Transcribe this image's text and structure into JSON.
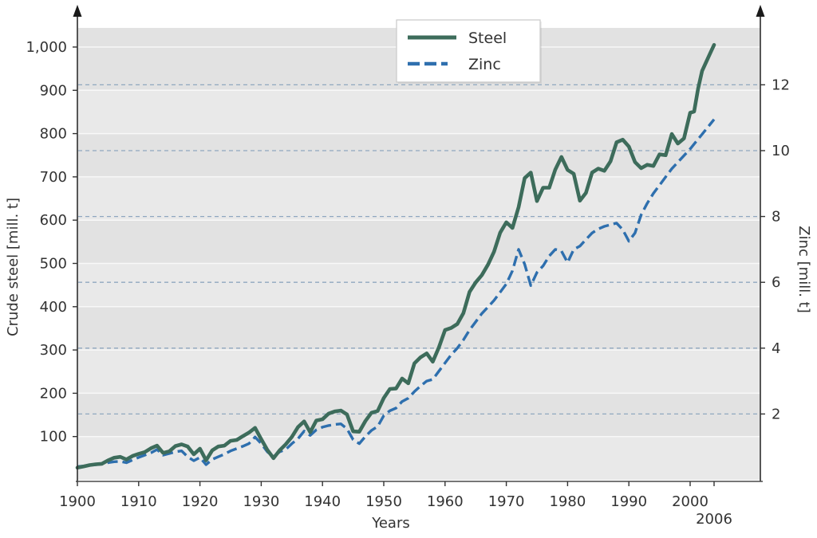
{
  "figure": {
    "type_note": "dual-axis line chart, world steel and zinc production 1900-2006"
  },
  "colors": {
    "background": "#ffffff",
    "plot_band_light": "#e9e9e9",
    "plot_band_dark": "#e2e2e2",
    "white_gridline": "#f8f8f8",
    "dashed_gridline": "#8ba4bd",
    "axis_line": "#2b2b2b",
    "tick_text": "#333333",
    "steel_line": "#3d6c5b",
    "zinc_line": "#2e6fae",
    "legend_border": "#c9c9c9",
    "legend_bg": "#ffffff"
  },
  "chart_data": {
    "type": "line",
    "title": "",
    "xlabel": "Years",
    "ylabel_left": "Crude steel [mill. t]",
    "ylabel_right": "Zinc [mill. t]",
    "legend_position": "top-center",
    "grid": "horizontal bands with white lines (left axis) and blue dashed lines (right axis)",
    "x_axis": {
      "label": "Years",
      "ticks": [
        1900,
        1910,
        1920,
        1930,
        1940,
        1950,
        1960,
        1970,
        1980,
        1990,
        2000,
        2006
      ],
      "range": [
        1900,
        2011
      ]
    },
    "left_axis": {
      "label": "Crude steel [mill. t]",
      "ticks": [
        100,
        200,
        300,
        400,
        500,
        600,
        700,
        800,
        900,
        1000
      ],
      "tick_labels": [
        "100",
        "200",
        "300",
        "400",
        "500",
        "600",
        "700",
        "800",
        "900",
        "1,000"
      ],
      "range": [
        0,
        1044
      ]
    },
    "right_axis": {
      "label": "Zinc [mill. t]",
      "ticks": [
        2,
        4,
        6,
        8,
        10,
        12
      ],
      "tick_labels": [
        "2",
        "4",
        "6",
        "8",
        "10",
        "12"
      ],
      "range": [
        0,
        13.7
      ]
    },
    "legend": [
      {
        "label": "Steel",
        "style": "solid"
      },
      {
        "label": "Zinc",
        "style": "dashed"
      }
    ],
    "series": [
      {
        "name": "Steel",
        "axis": "left",
        "style": "solid",
        "color": "#3d6c5b",
        "points": [
          [
            1900,
            28
          ],
          [
            1901,
            31
          ],
          [
            1902,
            34
          ],
          [
            1903,
            36
          ],
          [
            1904,
            37
          ],
          [
            1905,
            45
          ],
          [
            1906,
            51
          ],
          [
            1907,
            53
          ],
          [
            1908,
            47
          ],
          [
            1909,
            55
          ],
          [
            1910,
            60
          ],
          [
            1911,
            64
          ],
          [
            1912,
            73
          ],
          [
            1913,
            79
          ],
          [
            1914,
            62
          ],
          [
            1915,
            66
          ],
          [
            1916,
            78
          ],
          [
            1917,
            82
          ],
          [
            1918,
            77
          ],
          [
            1919,
            59
          ],
          [
            1920,
            72
          ],
          [
            1921,
            45
          ],
          [
            1922,
            68
          ],
          [
            1923,
            77
          ],
          [
            1924,
            79
          ],
          [
            1925,
            90
          ],
          [
            1926,
            92
          ],
          [
            1927,
            101
          ],
          [
            1928,
            109
          ],
          [
            1929,
            120
          ],
          [
            1930,
            94
          ],
          [
            1931,
            69
          ],
          [
            1932,
            50
          ],
          [
            1933,
            68
          ],
          [
            1934,
            82
          ],
          [
            1935,
            99
          ],
          [
            1936,
            122
          ],
          [
            1937,
            135
          ],
          [
            1938,
            110
          ],
          [
            1939,
            137
          ],
          [
            1940,
            140
          ],
          [
            1941,
            153
          ],
          [
            1942,
            158
          ],
          [
            1943,
            160
          ],
          [
            1944,
            151
          ],
          [
            1945,
            112
          ],
          [
            1946,
            111
          ],
          [
            1947,
            136
          ],
          [
            1948,
            155
          ],
          [
            1949,
            159
          ],
          [
            1950,
            189
          ],
          [
            1951,
            210
          ],
          [
            1952,
            211
          ],
          [
            1953,
            234
          ],
          [
            1954,
            223
          ],
          [
            1955,
            269
          ],
          [
            1956,
            283
          ],
          [
            1957,
            292
          ],
          [
            1958,
            273
          ],
          [
            1959,
            306
          ],
          [
            1960,
            346
          ],
          [
            1961,
            351
          ],
          [
            1962,
            360
          ],
          [
            1963,
            385
          ],
          [
            1964,
            434
          ],
          [
            1965,
            456
          ],
          [
            1966,
            473
          ],
          [
            1967,
            497
          ],
          [
            1968,
            527
          ],
          [
            1969,
            571
          ],
          [
            1970,
            595
          ],
          [
            1971,
            582
          ],
          [
            1972,
            630
          ],
          [
            1973,
            697
          ],
          [
            1974,
            710
          ],
          [
            1975,
            644
          ],
          [
            1976,
            675
          ],
          [
            1977,
            675
          ],
          [
            1978,
            717
          ],
          [
            1979,
            746
          ],
          [
            1980,
            716
          ],
          [
            1981,
            707
          ],
          [
            1982,
            645
          ],
          [
            1983,
            663
          ],
          [
            1984,
            710
          ],
          [
            1985,
            719
          ],
          [
            1986,
            714
          ],
          [
            1987,
            736
          ],
          [
            1988,
            780
          ],
          [
            1989,
            786
          ],
          [
            1990,
            770
          ],
          [
            1991,
            734
          ],
          [
            1992,
            720
          ],
          [
            1993,
            728
          ],
          [
            1994,
            725
          ],
          [
            1995,
            752
          ],
          [
            1996,
            750
          ],
          [
            1997,
            799
          ],
          [
            1998,
            777
          ],
          [
            1999,
            789
          ],
          [
            2000,
            848
          ],
          [
            2001,
            851
          ],
          [
            2002,
            904
          ],
          [
            2003,
            945
          ],
          [
            2004,
            965
          ],
          [
            2005,
            985
          ],
          [
            2006,
            1005
          ]
        ]
      },
      {
        "name": "Zinc",
        "axis": "right",
        "style": "dashed",
        "color": "#2e6fae",
        "points": [
          [
            1900,
            0.4
          ],
          [
            1901,
            0.42
          ],
          [
            1902,
            0.44
          ],
          [
            1903,
            0.46
          ],
          [
            1904,
            0.48
          ],
          [
            1905,
            0.52
          ],
          [
            1906,
            0.55
          ],
          [
            1907,
            0.56
          ],
          [
            1908,
            0.52
          ],
          [
            1909,
            0.6
          ],
          [
            1910,
            0.68
          ],
          [
            1911,
            0.75
          ],
          [
            1912,
            0.82
          ],
          [
            1913,
            0.92
          ],
          [
            1914,
            0.75
          ],
          [
            1915,
            0.8
          ],
          [
            1916,
            0.85
          ],
          [
            1917,
            0.88
          ],
          [
            1918,
            0.7
          ],
          [
            1919,
            0.58
          ],
          [
            1920,
            0.68
          ],
          [
            1921,
            0.46
          ],
          [
            1922,
            0.62
          ],
          [
            1923,
            0.7
          ],
          [
            1924,
            0.78
          ],
          [
            1925,
            0.88
          ],
          [
            1926,
            0.95
          ],
          [
            1927,
            1.02
          ],
          [
            1928,
            1.1
          ],
          [
            1929,
            1.3
          ],
          [
            1930,
            1.1
          ],
          [
            1931,
            0.85
          ],
          [
            1932,
            0.7
          ],
          [
            1933,
            0.85
          ],
          [
            1934,
            0.92
          ],
          [
            1935,
            1.1
          ],
          [
            1936,
            1.25
          ],
          [
            1937,
            1.48
          ],
          [
            1938,
            1.35
          ],
          [
            1939,
            1.52
          ],
          [
            1940,
            1.6
          ],
          [
            1941,
            1.65
          ],
          [
            1942,
            1.68
          ],
          [
            1943,
            1.7
          ],
          [
            1944,
            1.55
          ],
          [
            1945,
            1.22
          ],
          [
            1946,
            1.1
          ],
          [
            1947,
            1.32
          ],
          [
            1948,
            1.5
          ],
          [
            1949,
            1.62
          ],
          [
            1950,
            1.95
          ],
          [
            1951,
            2.1
          ],
          [
            1952,
            2.18
          ],
          [
            1953,
            2.38
          ],
          [
            1954,
            2.48
          ],
          [
            1955,
            2.68
          ],
          [
            1956,
            2.85
          ],
          [
            1957,
            3.0
          ],
          [
            1958,
            3.05
          ],
          [
            1959,
            3.3
          ],
          [
            1960,
            3.55
          ],
          [
            1961,
            3.8
          ],
          [
            1962,
            4.0
          ],
          [
            1963,
            4.25
          ],
          [
            1964,
            4.55
          ],
          [
            1965,
            4.8
          ],
          [
            1966,
            5.05
          ],
          [
            1967,
            5.25
          ],
          [
            1968,
            5.45
          ],
          [
            1969,
            5.7
          ],
          [
            1970,
            5.95
          ],
          [
            1971,
            6.35
          ],
          [
            1972,
            7.0
          ],
          [
            1973,
            6.55
          ],
          [
            1974,
            5.9
          ],
          [
            1975,
            6.3
          ],
          [
            1976,
            6.5
          ],
          [
            1977,
            6.8
          ],
          [
            1978,
            7.0
          ],
          [
            1979,
            6.95
          ],
          [
            1980,
            6.6
          ],
          [
            1981,
            7.0
          ],
          [
            1982,
            7.1
          ],
          [
            1983,
            7.3
          ],
          [
            1984,
            7.5
          ],
          [
            1985,
            7.62
          ],
          [
            1986,
            7.7
          ],
          [
            1987,
            7.75
          ],
          [
            1988,
            7.8
          ],
          [
            1989,
            7.6
          ],
          [
            1990,
            7.25
          ],
          [
            1991,
            7.5
          ],
          [
            1992,
            8.05
          ],
          [
            1993,
            8.4
          ],
          [
            1994,
            8.7
          ],
          [
            1995,
            8.95
          ],
          [
            1996,
            9.2
          ],
          [
            1997,
            9.45
          ],
          [
            1998,
            9.65
          ],
          [
            1999,
            9.85
          ],
          [
            2000,
            10.05
          ],
          [
            2001,
            10.2
          ],
          [
            2002,
            10.35
          ],
          [
            2003,
            10.5
          ],
          [
            2004,
            10.65
          ],
          [
            2005,
            10.8
          ],
          [
            2006,
            10.95
          ]
        ]
      }
    ]
  }
}
